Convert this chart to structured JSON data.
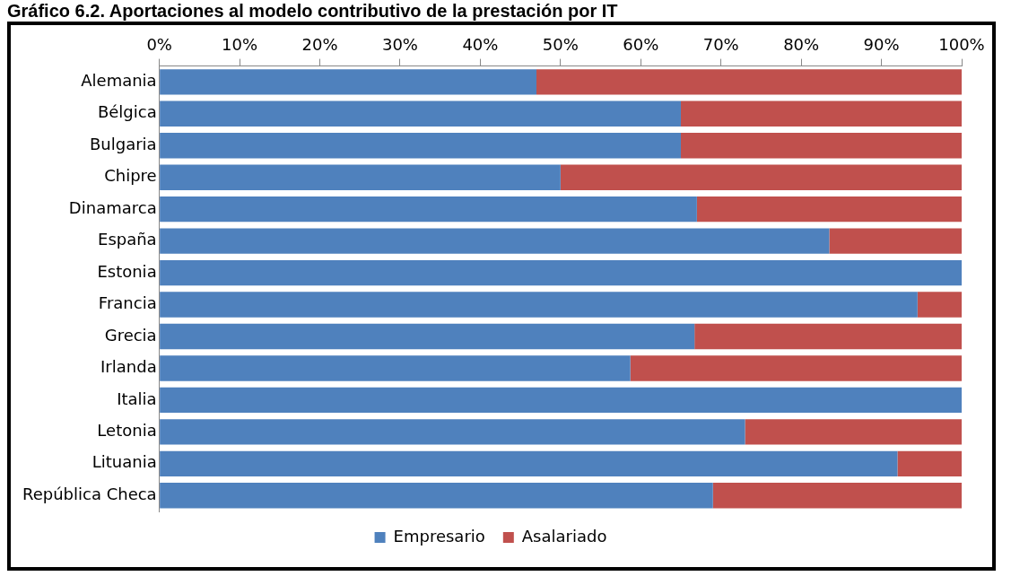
{
  "chart_data": {
    "type": "bar",
    "orientation": "horizontal",
    "stacked": true,
    "title": "Gráfico 6.2. Aportaciones al modelo contributivo de la prestación por IT",
    "categories": [
      "Alemania",
      "Bélgica",
      "Bulgaria",
      "Chipre",
      "Dinamarca",
      "España",
      "Estonia",
      "Francia",
      "Grecia",
      "Irlanda",
      "Italia",
      "Letonia",
      "Lituania",
      "República Checa"
    ],
    "series": [
      {
        "name": "Empresario",
        "color": "#4f81bd",
        "values": [
          47,
          65,
          65,
          50,
          67,
          83.5,
          100,
          94.5,
          66.7,
          58.7,
          100,
          73,
          92,
          69
        ]
      },
      {
        "name": "Asalariado",
        "color": "#c0504d",
        "values": [
          53,
          35,
          35,
          50,
          33,
          16.5,
          0,
          5.5,
          33.3,
          41.3,
          0,
          27,
          8,
          31
        ]
      }
    ],
    "xlim": [
      0,
      100
    ],
    "xticks": [
      {
        "value": 0,
        "label": "0%"
      },
      {
        "value": 10,
        "label": "10%"
      },
      {
        "value": 20,
        "label": "20%"
      },
      {
        "value": 30,
        "label": "30%"
      },
      {
        "value": 40,
        "label": "40%"
      },
      {
        "value": 50,
        "label": "50%"
      },
      {
        "value": 60,
        "label": "60%"
      },
      {
        "value": 70,
        "label": "70%"
      },
      {
        "value": 80,
        "label": "80%"
      },
      {
        "value": 90,
        "label": "90%"
      },
      {
        "value": 100,
        "label": "100%"
      }
    ],
    "grid": false,
    "legend": "bottom"
  }
}
